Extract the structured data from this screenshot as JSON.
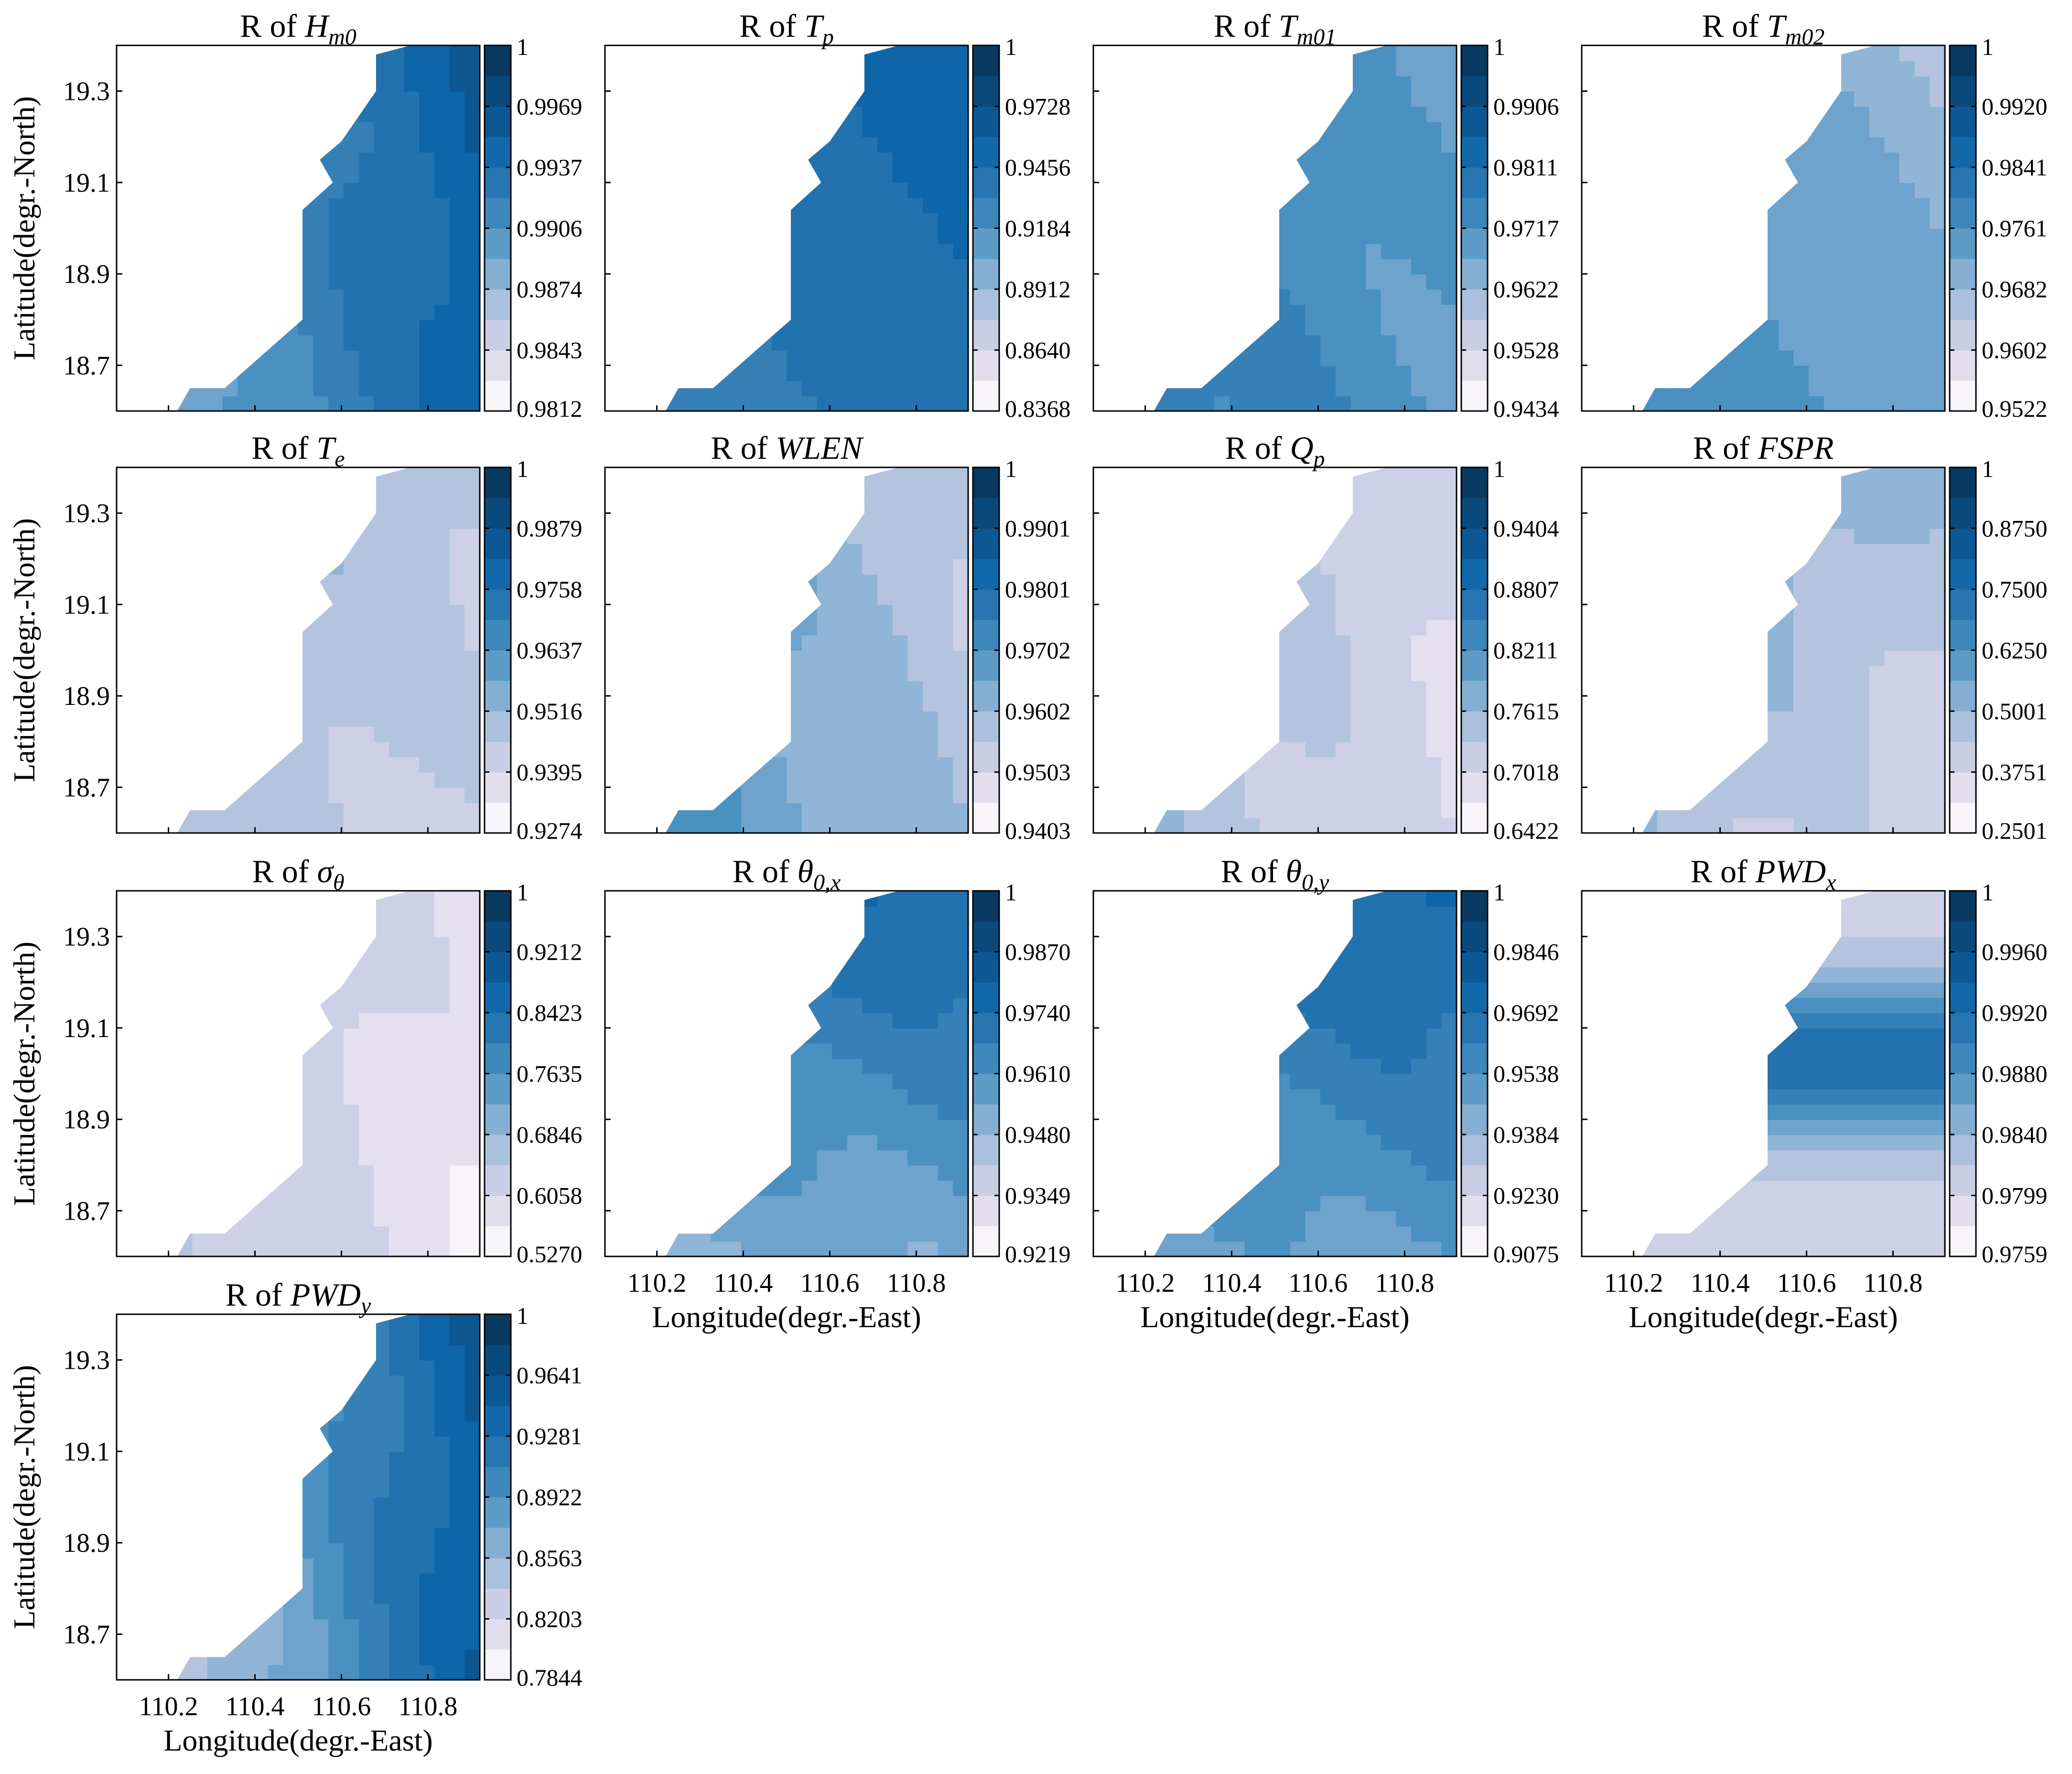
{
  "chart_data": {
    "type": "heatmap",
    "layout": "small-multiples 4x4 (13 panels)",
    "xlabel": "Longitude(degr.-East)",
    "ylabel": "Latitude(degr.-North)",
    "xlim": [
      110.08,
      110.92
    ],
    "ylim": [
      18.6,
      19.4
    ],
    "xticks": [
      "110.2",
      "110.4",
      "110.6",
      "110.8"
    ],
    "yticks": [
      "18.7",
      "18.9",
      "19.1",
      "19.3"
    ],
    "xtick_values": [
      110.2,
      110.4,
      110.6,
      110.8
    ],
    "ytick_values": [
      18.7,
      18.9,
      19.1,
      19.3
    ],
    "coastline_lon": [
      110.22,
      110.25,
      110.33,
      110.51,
      110.51,
      110.58,
      110.55,
      110.6,
      110.68,
      110.68,
      110.76
    ],
    "coastline_lat": [
      18.6,
      18.65,
      18.65,
      18.8,
      19.04,
      19.1,
      19.15,
      19.19,
      19.3,
      19.38,
      19.4
    ],
    "colormap": [
      "#f7f4fa",
      "#dad6ea",
      "#b4c4df",
      "#7fadd2",
      "#4a90c1",
      "#2a78b2",
      "#0e65a8",
      "#0b4e86",
      "#083a61"
    ],
    "panels": [
      {
        "id": "hm0",
        "title": {
          "pre": "R of ",
          "var": "H",
          "sub": "m0"
        },
        "colorbar_ticks": [
          "1",
          "0.9969",
          "0.9937",
          "0.9906",
          "0.9874",
          "0.9843",
          "0.9812"
        ],
        "range": [
          0.9812,
          1
        ],
        "pattern": "gradient",
        "lo": 0.32,
        "hi": 0.8,
        "lon0": 0.7,
        "lat0": 0.08
      },
      {
        "id": "tp",
        "title": {
          "pre": "R of ",
          "var": "T",
          "sub": "p"
        },
        "colorbar_ticks": [
          "1",
          "0.9728",
          "0.9456",
          "0.9184",
          "0.8912",
          "0.8640",
          "0.8368"
        ],
        "range": [
          0.8368,
          1
        ],
        "pattern": "gradient",
        "lo": 0.55,
        "hi": 0.78,
        "lon0": 0.4,
        "lat0": 0.3
      },
      {
        "id": "tm01",
        "title": {
          "pre": "R of ",
          "var": "T",
          "sub": "m01"
        },
        "colorbar_ticks": [
          "1",
          "0.9906",
          "0.9811",
          "0.9717",
          "0.9622",
          "0.9528",
          "0.9434"
        ],
        "range": [
          0.9434,
          1
        ],
        "pattern": "gradient",
        "lo": 0.42,
        "hi": 0.62,
        "lon0": -0.6,
        "lat0": -0.2
      },
      {
        "id": "tm02",
        "title": {
          "pre": "R of ",
          "var": "T",
          "sub": "m02"
        },
        "colorbar_ticks": [
          "1",
          "0.9920",
          "0.9841",
          "0.9761",
          "0.9682",
          "0.9602",
          "0.9522"
        ],
        "range": [
          0.9522,
          1
        ],
        "pattern": "gradient",
        "lo": 0.3,
        "hi": 0.55,
        "lon0": -0.6,
        "lat0": -0.4
      },
      {
        "id": "te",
        "title": {
          "pre": "R of ",
          "var": "T",
          "sub": "e"
        },
        "colorbar_ticks": [
          "1",
          "0.9879",
          "0.9758",
          "0.9637",
          "0.9516",
          "0.9395",
          "0.9274"
        ],
        "range": [
          0.9274,
          1
        ],
        "pattern": "gradient",
        "lo": 0.18,
        "hi": 0.34,
        "lon0": -0.5,
        "lat0": 0.3
      },
      {
        "id": "wlen",
        "title": {
          "pre": "R of ",
          "var": "WLEN",
          "sub": ""
        },
        "colorbar_ticks": [
          "1",
          "0.9901",
          "0.9801",
          "0.9702",
          "0.9602",
          "0.9503",
          "0.9403"
        ],
        "range": [
          0.9403,
          1
        ],
        "pattern": "gradient",
        "lo": 0.2,
        "hi": 0.55,
        "lon0": -0.9,
        "lat0": -0.2
      },
      {
        "id": "qp",
        "title": {
          "pre": "R of ",
          "var": "Q",
          "sub": "p"
        },
        "colorbar_ticks": [
          "1",
          "0.9404",
          "0.8807",
          "0.8211",
          "0.7615",
          "0.7018",
          "0.6422"
        ],
        "range": [
          0.6422,
          1
        ],
        "pattern": "gradient",
        "lo": 0.1,
        "hi": 0.38,
        "lon0": -0.8,
        "lat0": 0.2
      },
      {
        "id": "fspr",
        "title": {
          "pre": "R of ",
          "var": "FSPR",
          "sub": ""
        },
        "colorbar_ticks": [
          "1",
          "0.8750",
          "0.7500",
          "0.6250",
          "0.5001",
          "0.3751",
          "0.2501"
        ],
        "range": [
          0.2501,
          1
        ],
        "pattern": "gradient",
        "lo": 0.14,
        "hi": 0.45,
        "lon0": -0.7,
        "lat0": 0.6
      },
      {
        "id": "sigma",
        "title": {
          "pre": "R of ",
          "var": "σ",
          "sub": "θ"
        },
        "colorbar_ticks": [
          "1",
          "0.9212",
          "0.8423",
          "0.7635",
          "0.6846",
          "0.6058",
          "0.5270"
        ],
        "range": [
          0.527,
          1
        ],
        "pattern": "gradient",
        "lo": 0.04,
        "hi": 0.32,
        "lon0": -1.0,
        "lat0": 0.2
      },
      {
        "id": "theta0x",
        "title": {
          "pre": "R of ",
          "var": "θ",
          "sub": "0,x"
        },
        "colorbar_ticks": [
          "1",
          "0.9870",
          "0.9740",
          "0.9610",
          "0.9480",
          "0.9349",
          "0.9219"
        ],
        "range": [
          0.9219,
          1
        ],
        "pattern": "gradient",
        "lo": 0.35,
        "hi": 0.72,
        "lon0": 0.15,
        "lat0": 0.9
      },
      {
        "id": "theta0y",
        "title": {
          "pre": "R of ",
          "var": "θ",
          "sub": "0,y"
        },
        "colorbar_ticks": [
          "1",
          "0.9846",
          "0.9692",
          "0.9538",
          "0.9384",
          "0.9230",
          "0.9075"
        ],
        "range": [
          0.9075,
          1
        ],
        "pattern": "gradient",
        "lo": 0.4,
        "hi": 0.74,
        "lon0": 0.2,
        "lat0": 0.9
      },
      {
        "id": "pwdx",
        "title": {
          "pre": "R of ",
          "var": "PWD",
          "sub": "x"
        },
        "colorbar_ticks": [
          "1",
          "0.9960",
          "0.9920",
          "0.9880",
          "0.9840",
          "0.9799",
          "0.9759"
        ],
        "range": [
          0.9759,
          1
        ],
        "pattern": "band",
        "lo": 0.15,
        "hi": 0.7,
        "lon0": 0,
        "lat0": 0
      },
      {
        "id": "pwdy",
        "title": {
          "pre": "R of ",
          "var": "PWD",
          "sub": "y"
        },
        "colorbar_ticks": [
          "1",
          "0.9641",
          "0.9281",
          "0.8922",
          "0.8563",
          "0.8203",
          "0.7844"
        ],
        "range": [
          0.7844,
          1
        ],
        "pattern": "gradient",
        "lo": 0.08,
        "hi": 0.82,
        "lon0": 1.0,
        "lat0": 0.05
      }
    ]
  }
}
